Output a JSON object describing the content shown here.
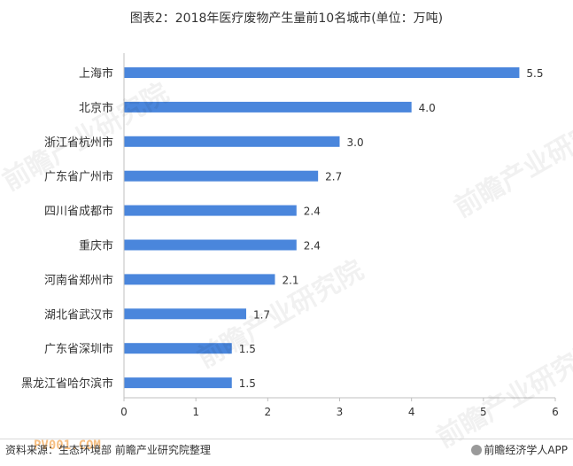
{
  "chart_data": {
    "type": "bar",
    "orientation": "horizontal",
    "title": "图表2：2018年医疗废物产生量前10名城市(单位：万吨)",
    "categories": [
      "上海市",
      "北京市",
      "浙江省杭州市",
      "广东省广州市",
      "四川省成都市",
      "重庆市",
      "河南省郑州市",
      "湖北省武汉市",
      "广东省深圳市",
      "黑龙江省哈尔滨市"
    ],
    "values": [
      5.5,
      4.0,
      3.0,
      2.7,
      2.4,
      2.4,
      2.1,
      1.7,
      1.5,
      1.5
    ],
    "value_labels": [
      "5.5",
      "4.0",
      "3.0",
      "2.7",
      "2.4",
      "2.4",
      "2.1",
      "1.7",
      "1.5",
      "1.5"
    ],
    "xlim": [
      0,
      6
    ],
    "xticks": [
      "0",
      "1",
      "2",
      "3",
      "4",
      "5",
      "6"
    ],
    "grid": false,
    "bar_color": "#4a86dc"
  },
  "footer": {
    "source": "资料来源：生态环境部 前瞻产业研究院整理",
    "brand": "前瞻经济学人APP"
  },
  "watermark_text": "前瞻产业研究院",
  "logo_text": "PV001.COM"
}
